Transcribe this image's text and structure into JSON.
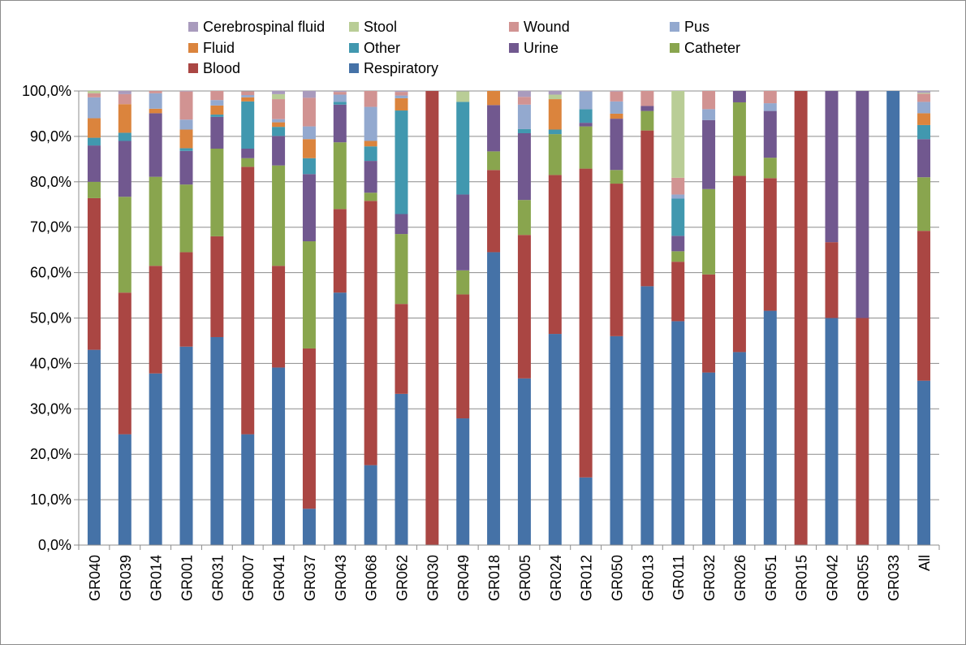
{
  "chart_data": {
    "type": "bar",
    "stacked": true,
    "title": "",
    "xlabel": "",
    "ylabel": "",
    "ylim": [
      0,
      100
    ],
    "y_ticks": [
      "0,0%",
      "10,0%",
      "20,0%",
      "30,0%",
      "40,0%",
      "50,0%",
      "60,0%",
      "70,0%",
      "80,0%",
      "90,0%",
      "100,0%"
    ],
    "grid": true,
    "legend_position": "top",
    "categories": [
      "GR040",
      "GR039",
      "GR014",
      "GR001",
      "GR031",
      "GR007",
      "GR041",
      "GR037",
      "GR043",
      "GR068",
      "GR062",
      "GR030",
      "GR049",
      "GR018",
      "GR005",
      "GR024",
      "GR012",
      "GR050",
      "GR013",
      "GR011",
      "GR032",
      "GR026",
      "GR051",
      "GR015",
      "GR042",
      "GR055",
      "GR033",
      "All"
    ],
    "series": [
      {
        "name": "Respiratory",
        "color": "#4572A7",
        "values": [
          43.0,
          24.4,
          37.8,
          43.7,
          45.8,
          24.4,
          39.1,
          8.0,
          55.6,
          17.6,
          33.3,
          0,
          27.9,
          64.5,
          36.7,
          46.5,
          14.9,
          46.0,
          57.0,
          49.3,
          38.0,
          42.5,
          51.6,
          0,
          50.0,
          0,
          100,
          36.2
        ]
      },
      {
        "name": "Blood",
        "color": "#AA4643",
        "values": [
          33.4,
          31.2,
          23.7,
          20.8,
          22.2,
          58.9,
          22.4,
          35.3,
          18.4,
          58.2,
          19.8,
          100,
          27.3,
          18.1,
          31.6,
          35.0,
          68.0,
          33.6,
          34.3,
          13.1,
          21.6,
          38.8,
          29.2,
          100,
          16.7,
          50.0,
          0,
          33.0
        ]
      },
      {
        "name": "Catheter",
        "color": "#89A54E",
        "values": [
          3.6,
          21.1,
          19.6,
          14.9,
          19.3,
          1.9,
          22.1,
          23.6,
          14.7,
          1.8,
          15.4,
          0,
          5.3,
          4.1,
          7.7,
          9.0,
          9.3,
          3.0,
          4.3,
          2.3,
          18.8,
          16.2,
          4.5,
          0,
          0,
          0,
          0,
          11.8
        ]
      },
      {
        "name": "Urine",
        "color": "#71588F",
        "values": [
          8.0,
          12.3,
          14.0,
          7.4,
          7.0,
          2.1,
          6.5,
          14.8,
          8.3,
          7.0,
          4.4,
          0,
          16.7,
          10.2,
          14.7,
          0,
          0.8,
          11.3,
          1.1,
          3.4,
          15.2,
          2.6,
          10.3,
          0,
          33.3,
          50.0,
          0,
          8.4
        ]
      },
      {
        "name": "Other",
        "color": "#4198AF",
        "values": [
          1.7,
          1.8,
          0,
          0.6,
          0.5,
          10.4,
          2.0,
          3.5,
          0.6,
          3.2,
          22.8,
          0,
          20.4,
          0,
          0.9,
          1.0,
          3.0,
          0,
          0,
          8.2,
          0,
          0,
          0,
          0,
          0,
          0,
          0,
          3.1
        ]
      },
      {
        "name": "Fluid",
        "color": "#DB843D",
        "values": [
          4.3,
          6.3,
          1.0,
          4.1,
          2.0,
          0.9,
          1.0,
          4.2,
          0,
          1.2,
          2.7,
          0,
          0,
          3.1,
          0,
          6.7,
          0,
          1.1,
          0,
          0,
          0,
          0,
          0,
          0,
          0,
          0,
          0,
          2.6
        ]
      },
      {
        "name": "Pus",
        "color": "#93A9CF",
        "values": [
          4.6,
          0,
          3.4,
          2.2,
          1.2,
          0.5,
          0.7,
          2.8,
          1.6,
          7.5,
          0.6,
          0,
          0,
          0,
          5.4,
          0,
          3.9,
          2.7,
          0,
          0.9,
          2.4,
          0,
          1.7,
          0,
          0,
          0,
          0,
          2.5
        ]
      },
      {
        "name": "Wound",
        "color": "#D19392",
        "values": [
          0.9,
          2.2,
          0.5,
          6.2,
          2.0,
          0.8,
          4.4,
          6.3,
          0.6,
          3.5,
          0.8,
          0,
          0,
          0,
          1.7,
          0,
          0,
          2.2,
          3.3,
          3.7,
          4.0,
          0,
          3.0,
          0,
          0,
          0,
          0,
          1.8
        ]
      },
      {
        "name": "Stool",
        "color": "#B9CD96",
        "values": [
          0.5,
          0,
          0,
          0,
          0,
          0,
          1.1,
          0,
          0,
          0,
          0,
          0,
          2.3,
          0,
          0,
          1.0,
          0,
          0,
          0,
          19.1,
          0,
          0,
          0,
          0,
          0,
          0,
          0,
          0.2
        ]
      },
      {
        "name": "Cerebrospinal fluid",
        "color": "#A99BBD",
        "values": [
          0.5,
          0.7,
          0,
          0.1,
          0,
          0,
          0.7,
          1.5,
          0.2,
          0,
          0.2,
          0,
          0,
          0,
          1.3,
          0.8,
          0.1,
          0.1,
          0,
          0,
          0,
          0,
          0,
          0,
          0,
          0,
          0,
          0.4
        ]
      }
    ]
  },
  "legend": [
    {
      "label": "Cerebrospinal fluid",
      "color": "#A99BBD"
    },
    {
      "label": "Stool",
      "color": "#B9CD96"
    },
    {
      "label": "Wound",
      "color": "#D19392"
    },
    {
      "label": "Pus",
      "color": "#93A9CF"
    },
    {
      "label": "Fluid",
      "color": "#DB843D"
    },
    {
      "label": "Other",
      "color": "#4198AF"
    },
    {
      "label": "Urine",
      "color": "#71588F"
    },
    {
      "label": "Catheter",
      "color": "#89A54E"
    },
    {
      "label": "Blood",
      "color": "#AA4643"
    },
    {
      "label": "Respiratory",
      "color": "#4572A7"
    }
  ]
}
